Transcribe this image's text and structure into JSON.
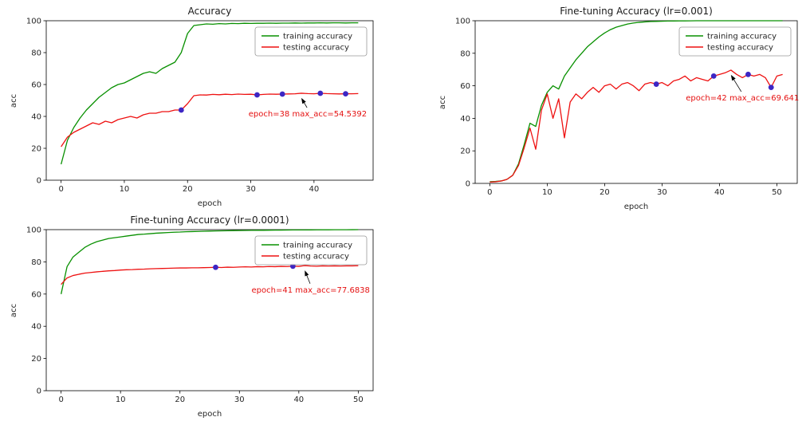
{
  "colors": {
    "spine": "#000000",
    "text": "#262626",
    "marker": "#3d26c4",
    "annotation": "#e51010",
    "legend_border": "#999999"
  },
  "chart_data": [
    {
      "type": "line",
      "title": "Accuracy",
      "xlabel": "epoch",
      "ylabel": "acc",
      "xlim": [
        -2.35,
        49.35
      ],
      "ylim": [
        0,
        100
      ],
      "xticks": [
        0,
        10,
        20,
        30,
        40
      ],
      "yticks": [
        0,
        20,
        40,
        60,
        80,
        100
      ],
      "legend_position": "upper right",
      "series": [
        {
          "name": "training accuracy",
          "color": "#089000",
          "y": [
            10,
            25,
            33,
            39,
            44,
            48,
            52,
            55,
            58,
            60,
            61,
            63,
            65,
            67,
            68,
            67,
            70,
            72,
            74,
            80,
            92,
            97,
            97.5,
            98,
            97.8,
            98.2,
            98,
            98.3,
            98.2,
            98.4,
            98.3,
            98.4,
            98.4,
            98.5,
            98.4,
            98.5,
            98.5,
            98.6,
            98.5,
            98.6,
            98.6,
            98.7,
            98.6,
            98.7,
            98.7,
            98.6,
            98.7,
            98.7
          ]
        },
        {
          "name": "testing accuracy",
          "color": "#ee1111",
          "y": [
            21,
            27,
            30,
            32,
            34,
            36,
            35,
            37,
            36,
            38,
            39,
            40,
            39,
            41,
            42,
            42,
            43,
            43,
            44,
            44,
            48,
            53,
            53.5,
            53.4,
            53.8,
            53.6,
            53.9,
            53.7,
            54,
            53.8,
            53.9,
            53.5,
            53.8,
            54,
            53.9,
            54,
            54.1,
            54.2,
            54.5392,
            54.3,
            54.2,
            54.5,
            54.3,
            54.2,
            54.1,
            54.2,
            54.2,
            54.3
          ]
        }
      ],
      "highlight_epochs": [
        19,
        31,
        35,
        41,
        45
      ],
      "annotation": {
        "label": "epoch=38 max_acc=54.5392",
        "point": [
          38,
          54.5392
        ],
        "label_xy": [
          39,
          40
        ]
      }
    },
    {
      "type": "line",
      "title": "Fine-tuning Accuracy (lr=0.001)",
      "xlabel": "epoch",
      "ylabel": "acc",
      "xlim": [
        -2.55,
        53.55
      ],
      "ylim": [
        0,
        100
      ],
      "xticks": [
        0,
        10,
        20,
        30,
        40,
        50
      ],
      "yticks": [
        0,
        20,
        40,
        60,
        80,
        100
      ],
      "legend_position": "upper right",
      "series": [
        {
          "name": "training accuracy",
          "color": "#089000",
          "y": [
            1,
            1.2,
            1.5,
            2.5,
            5,
            12,
            24,
            37,
            35,
            48,
            56,
            60,
            58,
            66,
            71,
            76,
            80,
            84,
            87,
            90,
            92.5,
            94.5,
            96,
            97,
            98,
            98.6,
            99,
            99.3,
            99.5,
            99.6,
            99.7,
            99.8,
            99.85,
            99.9,
            99.9,
            99.95,
            100,
            100,
            100,
            100,
            100,
            100,
            100,
            100,
            100,
            100,
            100,
            100,
            100,
            100,
            100,
            100
          ]
        },
        {
          "name": "testing accuracy",
          "color": "#ee1111",
          "y": [
            0.8,
            1,
            1.5,
            2.5,
            5,
            11,
            22,
            34,
            21,
            45,
            55,
            40,
            52,
            28,
            50,
            55,
            52,
            56,
            59,
            56,
            60,
            61,
            58,
            61,
            62,
            60,
            57,
            61,
            62,
            61,
            62,
            60,
            63,
            64,
            66,
            63,
            65,
            64,
            63,
            66,
            67,
            68,
            69.641,
            67,
            65,
            67,
            66,
            67,
            65,
            59,
            66,
            67
          ]
        }
      ],
      "highlight_epochs": [
        29,
        39,
        45,
        49
      ],
      "annotation": {
        "label": "epoch=42 max_acc=69.641",
        "point": [
          42,
          69.641
        ],
        "label_xy": [
          44,
          51
        ]
      }
    },
    {
      "type": "line",
      "title": "Fine-tuning Accuracy (lr=0.0001)",
      "xlabel": "epoch",
      "ylabel": "acc",
      "xlim": [
        -2.5,
        52.5
      ],
      "ylim": [
        0,
        100
      ],
      "xticks": [
        0,
        10,
        20,
        30,
        40,
        50
      ],
      "yticks": [
        0,
        20,
        40,
        60,
        80,
        100
      ],
      "legend_position": "upper right",
      "series": [
        {
          "name": "training accuracy",
          "color": "#089000",
          "y": [
            60,
            77,
            83,
            86,
            89,
            91,
            92.5,
            93.5,
            94.5,
            95,
            95.5,
            96,
            96.5,
            97,
            97.2,
            97.5,
            97.8,
            98,
            98.2,
            98.4,
            98.5,
            98.7,
            98.8,
            98.9,
            99,
            99.1,
            99.2,
            99.25,
            99.3,
            99.4,
            99.45,
            99.5,
            99.55,
            99.6,
            99.6,
            99.65,
            99.7,
            99.7,
            99.75,
            99.8,
            99.8,
            99.82,
            99.85,
            99.87,
            99.9,
            99.9,
            99.92,
            99.94,
            99.95,
            99.96,
            100
          ]
        },
        {
          "name": "testing accuracy",
          "color": "#ee1111",
          "y": [
            66,
            70,
            71.5,
            72.3,
            73,
            73.4,
            73.8,
            74.1,
            74.4,
            74.6,
            74.9,
            75.1,
            75.2,
            75.4,
            75.5,
            75.7,
            75.8,
            75.9,
            76,
            76.1,
            76.2,
            76.2,
            76.3,
            76.3,
            76.4,
            76.5,
            76.6,
            76.5,
            76.7,
            76.6,
            76.8,
            76.9,
            76.8,
            77,
            76.9,
            77.1,
            77,
            77.2,
            77.1,
            77.3,
            77.2,
            77.6838,
            77.4,
            77.3,
            77.5,
            77.4,
            77.5,
            77.4,
            77.5,
            77.5,
            77.6
          ]
        }
      ],
      "highlight_epochs": [
        26,
        39
      ],
      "annotation": {
        "label": "epoch=41 max_acc=77.6838",
        "point": [
          41,
          77.6838
        ],
        "label_xy": [
          42,
          61
        ]
      }
    }
  ]
}
